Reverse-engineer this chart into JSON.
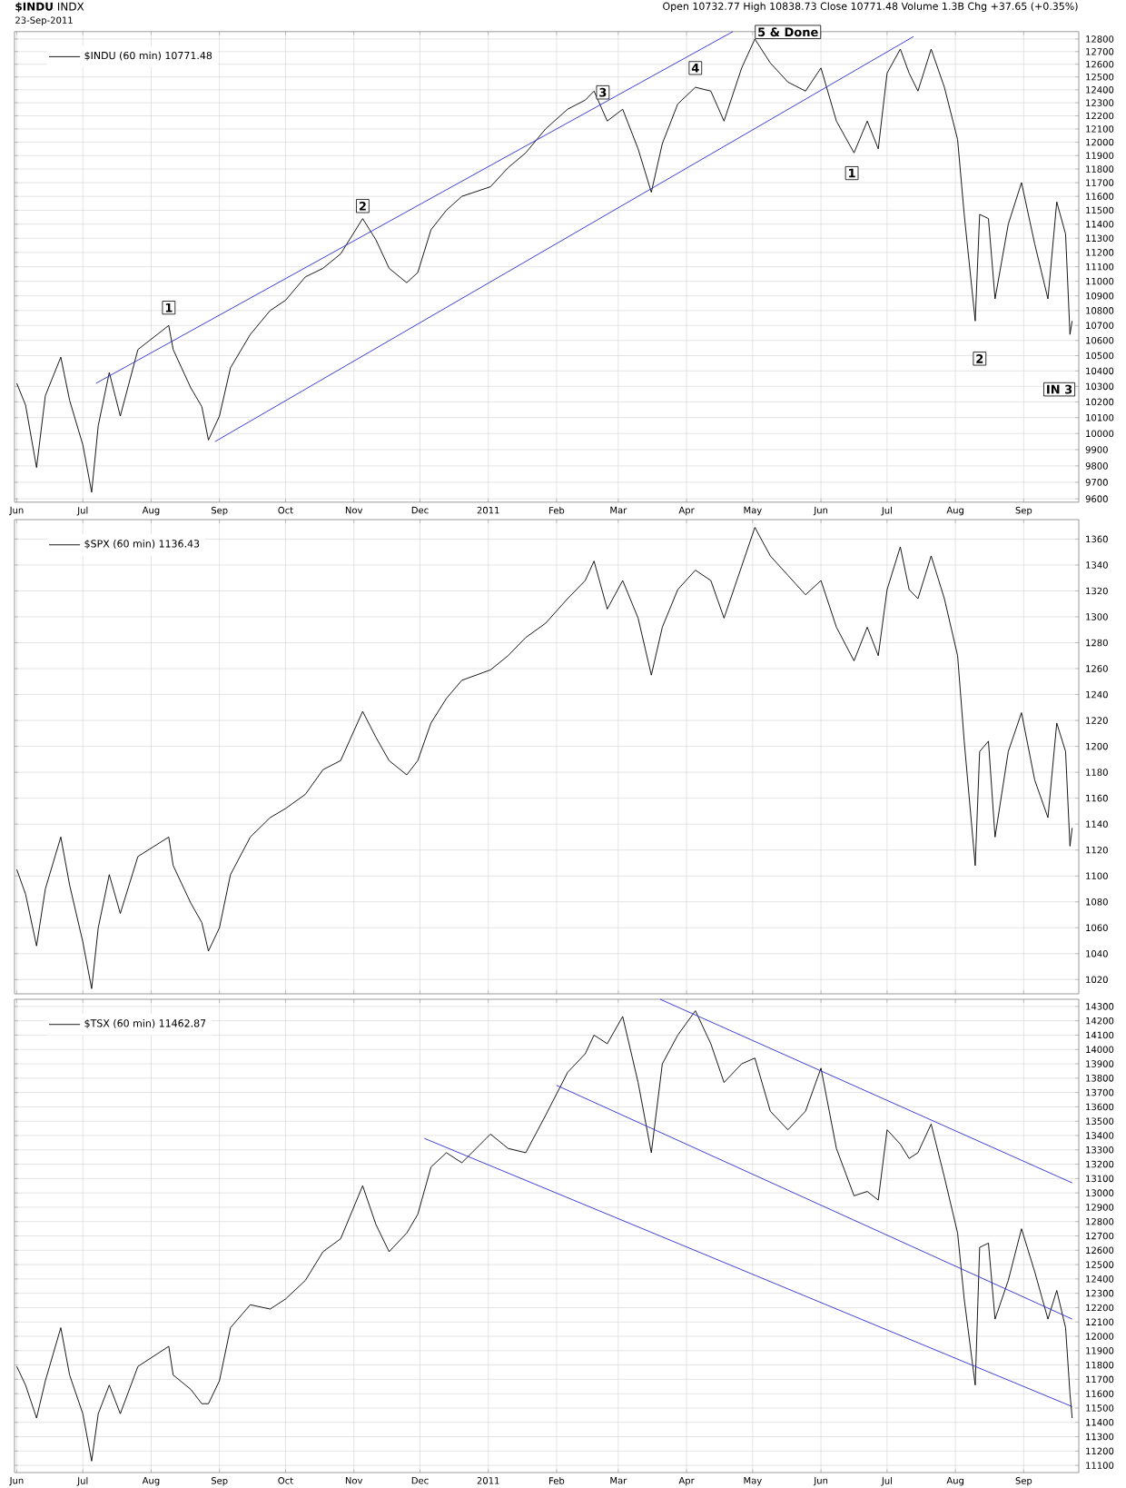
{
  "chart_data": [
    {
      "type": "line",
      "title": "**$INDU** INDX",
      "subtitle": "23-Sep-2011",
      "x": [
        "2010-06-01",
        "2010-06-05",
        "2010-06-10",
        "2010-06-14",
        "2010-06-21",
        "2010-06-25",
        "2010-07-01",
        "2010-07-05",
        "2010-07-08",
        "2010-07-13",
        "2010-07-18",
        "2010-07-26",
        "2010-08-09",
        "2010-08-11",
        "2010-08-19",
        "2010-08-24",
        "2010-08-27",
        "2010-09-01",
        "2010-09-06",
        "2010-09-15",
        "2010-09-24",
        "2010-10-01",
        "2010-10-10",
        "2010-10-18",
        "2010-10-26",
        "2010-11-05",
        "2010-11-11",
        "2010-11-17",
        "2010-11-25",
        "2010-11-30",
        "2010-12-06",
        "2010-12-13",
        "2010-12-20",
        "2011-01-02",
        "2011-01-10",
        "2011-01-18",
        "2011-01-27",
        "2011-02-06",
        "2011-02-14",
        "2011-02-18",
        "2011-02-24",
        "2011-03-03",
        "2011-03-10",
        "2011-03-16",
        "2011-03-21",
        "2011-03-28",
        "2011-04-05",
        "2011-04-12",
        "2011-04-18",
        "2011-04-26",
        "2011-05-02",
        "2011-05-09",
        "2011-05-17",
        "2011-05-25",
        "2011-06-01",
        "2011-06-08",
        "2011-06-16",
        "2011-06-22",
        "2011-06-27",
        "2011-07-01",
        "2011-07-07",
        "2011-07-11",
        "2011-07-15",
        "2011-07-21",
        "2011-07-27",
        "2011-08-02",
        "2011-08-05",
        "2011-08-10",
        "2011-08-12",
        "2011-08-16",
        "2011-08-19",
        "2011-08-25",
        "2011-08-31",
        "2011-09-06",
        "2011-09-12",
        "2011-09-16",
        "2011-09-20",
        "2011-09-22",
        "2011-09-23"
      ],
      "series": [
        {
          "name": "$INDU (60 min) 10771.48",
          "color": "#000000",
          "values": [
            10320,
            10180,
            9790,
            10240,
            10490,
            10210,
            9930,
            9640,
            10050,
            10390,
            10110,
            10540,
            10700,
            10540,
            10290,
            10170,
            9960,
            10110,
            10420,
            10640,
            10800,
            10870,
            11030,
            11090,
            11190,
            11440,
            11290,
            11090,
            10990,
            11060,
            11360,
            11500,
            11600,
            11670,
            11810,
            11920,
            12100,
            12250,
            12320,
            12390,
            12160,
            12250,
            11950,
            11630,
            11990,
            12290,
            12420,
            12390,
            12160,
            12570,
            12800,
            12610,
            12460,
            12390,
            12570,
            12160,
            11920,
            12160,
            11950,
            12530,
            12720,
            12530,
            12390,
            12720,
            12420,
            12020,
            11470,
            10730,
            11470,
            11440,
            10880,
            11400,
            11700,
            11260,
            10880,
            11560,
            11330,
            10640,
            10730
          ]
        },
        {
          "type": "line",
          "color": "#2b2bd4",
          "x": [
            "2010-07-07",
            "2011-04-22"
          ],
          "values": [
            10320,
            12860
          ]
        },
        {
          "type": "line",
          "color": "#2b2bd4",
          "x": [
            "2010-08-30",
            "2011-07-13"
          ],
          "values": [
            9950,
            12820
          ]
        }
      ],
      "annotations": [
        "Open 10732.77 High 10838.73 Close 10771.48 Volume 1.3B Chg +37.65 (+0.35%)",
        {
          "text": "1",
          "x": "2010-08-09",
          "y": 10820
        },
        {
          "text": "2",
          "x": "2010-11-05",
          "y": 11530
        },
        {
          "text": "3",
          "x": "2011-02-22",
          "y": 12380
        },
        {
          "text": "4",
          "x": "2011-04-05",
          "y": 12570
        },
        {
          "text": "5 & Done",
          "x": "2011-05-02",
          "y": 12800
        },
        {
          "text": "1",
          "x": "2011-06-15",
          "y": 11770
        },
        {
          "text": "2",
          "x": "2011-08-12",
          "y": 10480
        },
        "IN 3"
      ],
      "xlim": [
        "2010-05-31",
        "2011-09-26"
      ],
      "ylim": [
        9580,
        12860
      ],
      "log": true,
      "xticks": [
        {
          "value": "2010-06-01",
          "label": "Jun"
        },
        {
          "value": "2010-07-01",
          "label": "Jul"
        },
        {
          "value": "2010-08-01",
          "label": "Aug"
        },
        {
          "value": "2010-09-01",
          "label": "Sep"
        },
        {
          "value": "2010-10-01",
          "label": "Oct"
        },
        {
          "value": "2010-11-01",
          "label": "Nov"
        },
        {
          "value": "2010-12-01",
          "label": "Dec"
        },
        {
          "value": "2011-01-01",
          "label": "2011"
        },
        {
          "value": "2011-02-01",
          "label": "Feb"
        },
        {
          "value": "2011-03-01",
          "label": "Mar"
        },
        {
          "value": "2011-04-01",
          "label": "Apr"
        },
        {
          "value": "2011-05-01",
          "label": "May"
        },
        {
          "value": "2011-06-01",
          "label": "Jun"
        },
        {
          "value": "2011-07-01",
          "label": "Jul"
        },
        {
          "value": "2011-08-01",
          "label": "Aug"
        },
        {
          "value": "2011-09-01",
          "label": "Sep"
        }
      ],
      "yticks": [
        9600,
        9700,
        9800,
        9900,
        10000,
        10100,
        10200,
        10300,
        10400,
        10500,
        10600,
        10700,
        10800,
        10900,
        11000,
        11100,
        11200,
        11300,
        11400,
        11500,
        11600,
        11700,
        11800,
        11900,
        12000,
        12100,
        12200,
        12300,
        12400,
        12500,
        12600,
        12700,
        12800
      ],
      "grid": true,
      "legend": "top left"
    },
    {
      "type": "line",
      "x": [
        "2010-06-01",
        "2010-06-05",
        "2010-06-10",
        "2010-06-14",
        "2010-06-21",
        "2010-06-25",
        "2010-07-01",
        "2010-07-05",
        "2010-07-08",
        "2010-07-13",
        "2010-07-18",
        "2010-07-26",
        "2010-08-09",
        "2010-08-11",
        "2010-08-19",
        "2010-08-24",
        "2010-08-27",
        "2010-09-01",
        "2010-09-06",
        "2010-09-15",
        "2010-09-24",
        "2010-10-01",
        "2010-10-10",
        "2010-10-18",
        "2010-10-26",
        "2010-11-05",
        "2010-11-11",
        "2010-11-17",
        "2010-11-25",
        "2010-11-30",
        "2010-12-06",
        "2010-12-13",
        "2010-12-20",
        "2011-01-02",
        "2011-01-10",
        "2011-01-18",
        "2011-01-27",
        "2011-02-06",
        "2011-02-14",
        "2011-02-18",
        "2011-02-24",
        "2011-03-03",
        "2011-03-10",
        "2011-03-16",
        "2011-03-21",
        "2011-03-28",
        "2011-04-05",
        "2011-04-12",
        "2011-04-18",
        "2011-04-26",
        "2011-05-02",
        "2011-05-09",
        "2011-05-17",
        "2011-05-25",
        "2011-06-01",
        "2011-06-08",
        "2011-06-16",
        "2011-06-22",
        "2011-06-27",
        "2011-07-01",
        "2011-07-07",
        "2011-07-11",
        "2011-07-15",
        "2011-07-21",
        "2011-07-27",
        "2011-08-02",
        "2011-08-05",
        "2011-08-10",
        "2011-08-12",
        "2011-08-16",
        "2011-08-19",
        "2011-08-25",
        "2011-08-31",
        "2011-09-06",
        "2011-09-12",
        "2011-09-16",
        "2011-09-20",
        "2011-09-22",
        "2011-09-23"
      ],
      "series": [
        {
          "name": "$SPX (60 min) 1136.43",
          "color": "#000000",
          "values": [
            1105,
            1086,
            1046,
            1090,
            1130,
            1093,
            1049,
            1013,
            1060,
            1101,
            1071,
            1115,
            1130,
            1108,
            1079,
            1064,
            1042,
            1060,
            1101,
            1130,
            1145,
            1152,
            1163,
            1182,
            1189,
            1227,
            1207,
            1189,
            1178,
            1189,
            1218,
            1237,
            1251,
            1259,
            1270,
            1284,
            1295,
            1314,
            1328,
            1343,
            1306,
            1328,
            1299,
            1255,
            1292,
            1321,
            1336,
            1328,
            1299,
            1339,
            1369,
            1347,
            1332,
            1317,
            1328,
            1292,
            1266,
            1292,
            1270,
            1321,
            1354,
            1321,
            1314,
            1347,
            1314,
            1270,
            1204,
            1108,
            1196,
            1204,
            1130,
            1196,
            1226,
            1174,
            1145,
            1218,
            1196,
            1123,
            1137
          ]
        }
      ],
      "xlim": [
        "2010-05-31",
        "2011-09-26"
      ],
      "ylim": [
        1009,
        1375
      ],
      "xticks": [
        {
          "value": "2010-06-01",
          "label": null
        },
        {
          "value": "2010-07-01",
          "label": null
        },
        {
          "value": "2010-08-01",
          "label": null
        },
        {
          "value": "2010-09-01",
          "label": null
        },
        {
          "value": "2010-10-01",
          "label": null
        },
        {
          "value": "2010-11-01",
          "label": null
        },
        {
          "value": "2010-12-01",
          "label": null
        },
        {
          "value": "2011-01-01",
          "label": null
        },
        {
          "value": "2011-02-01",
          "label": null
        },
        {
          "value": "2011-03-01",
          "label": null
        },
        {
          "value": "2011-04-01",
          "label": null
        },
        {
          "value": "2011-05-01",
          "label": null
        },
        {
          "value": "2011-06-01",
          "label": null
        },
        {
          "value": "2011-07-01",
          "label": null
        },
        {
          "value": "2011-08-01",
          "label": null
        },
        {
          "value": "2011-09-01",
          "label": null
        }
      ],
      "yticks": [
        1020,
        1040,
        1060,
        1080,
        1100,
        1120,
        1140,
        1160,
        1180,
        1200,
        1220,
        1240,
        1260,
        1280,
        1300,
        1320,
        1340,
        1360
      ],
      "grid": true,
      "legend": "top left",
      "tick_labels": "y"
    },
    {
      "type": "line",
      "x": [
        "2010-06-01",
        "2010-06-05",
        "2010-06-10",
        "2010-06-14",
        "2010-06-21",
        "2010-06-25",
        "2010-07-01",
        "2010-07-05",
        "2010-07-08",
        "2010-07-13",
        "2010-07-18",
        "2010-07-26",
        "2010-08-09",
        "2010-08-11",
        "2010-08-19",
        "2010-08-24",
        "2010-08-27",
        "2010-09-01",
        "2010-09-06",
        "2010-09-15",
        "2010-09-24",
        "2010-10-01",
        "2010-10-10",
        "2010-10-18",
        "2010-10-26",
        "2010-11-05",
        "2010-11-11",
        "2010-11-17",
        "2010-11-25",
        "2010-11-30",
        "2010-12-06",
        "2010-12-13",
        "2010-12-20",
        "2011-01-02",
        "2011-01-10",
        "2011-01-18",
        "2011-01-27",
        "2011-02-06",
        "2011-02-14",
        "2011-02-18",
        "2011-02-24",
        "2011-03-03",
        "2011-03-10",
        "2011-03-16",
        "2011-03-21",
        "2011-03-28",
        "2011-04-05",
        "2011-04-12",
        "2011-04-18",
        "2011-04-26",
        "2011-05-02",
        "2011-05-09",
        "2011-05-17",
        "2011-05-25",
        "2011-06-01",
        "2011-06-08",
        "2011-06-16",
        "2011-06-22",
        "2011-06-27",
        "2011-07-01",
        "2011-07-07",
        "2011-07-11",
        "2011-07-15",
        "2011-07-21",
        "2011-07-27",
        "2011-08-02",
        "2011-08-05",
        "2011-08-10",
        "2011-08-12",
        "2011-08-16",
        "2011-08-19",
        "2011-08-25",
        "2011-08-31",
        "2011-09-06",
        "2011-09-12",
        "2011-09-16",
        "2011-09-20",
        "2011-09-22",
        "2011-09-23"
      ],
      "series": [
        {
          "name": "$TSX (60 min) 11462.87",
          "color": "#000000",
          "values": [
            11790,
            11660,
            11430,
            11690,
            12060,
            11730,
            11460,
            11130,
            11460,
            11660,
            11460,
            11790,
            11930,
            11730,
            11630,
            11530,
            11530,
            11690,
            12060,
            12220,
            12190,
            12260,
            12390,
            12590,
            12680,
            13050,
            12780,
            12590,
            12720,
            12850,
            13180,
            13280,
            13210,
            13410,
            13310,
            13280,
            13540,
            13840,
            13970,
            14100,
            14040,
            14230,
            13770,
            13280,
            13900,
            14100,
            14270,
            14040,
            13770,
            13900,
            13940,
            13570,
            13440,
            13570,
            13870,
            13310,
            12980,
            13010,
            12950,
            13440,
            13340,
            13240,
            13280,
            13480,
            13110,
            12720,
            12260,
            11660,
            12620,
            12650,
            12120,
            12390,
            12750,
            12450,
            12120,
            12320,
            12060,
            11600,
            11430
          ]
        },
        {
          "type": "line",
          "color": "#2b2bd4",
          "x": [
            "2011-03-20",
            "2011-09-23"
          ],
          "values": [
            14350,
            13070
          ]
        },
        {
          "type": "line",
          "color": "#2b2bd4",
          "x": [
            "2011-02-01",
            "2011-09-23"
          ],
          "values": [
            13750,
            12120
          ]
        },
        {
          "type": "line",
          "color": "#2b2bd4",
          "x": [
            "2010-12-03",
            "2011-09-23"
          ],
          "values": [
            13380,
            11510
          ]
        }
      ],
      "xlim": [
        "2010-05-31",
        "2011-09-26"
      ],
      "ylim": [
        11050,
        14350
      ],
      "xticks": [
        {
          "value": "2010-06-01",
          "label": "Jun"
        },
        {
          "value": "2010-07-01",
          "label": "Jul"
        },
        {
          "value": "2010-08-01",
          "label": "Aug"
        },
        {
          "value": "2010-09-01",
          "label": "Sep"
        },
        {
          "value": "2010-10-01",
          "label": "Oct"
        },
        {
          "value": "2010-11-01",
          "label": "Nov"
        },
        {
          "value": "2010-12-01",
          "label": "Dec"
        },
        {
          "value": "2011-01-01",
          "label": "2011"
        },
        {
          "value": "2011-02-01",
          "label": "Feb"
        },
        {
          "value": "2011-03-01",
          "label": "Mar"
        },
        {
          "value": "2011-04-01",
          "label": "Apr"
        },
        {
          "value": "2011-05-01",
          "label": "May"
        },
        {
          "value": "2011-06-01",
          "label": "Jun"
        },
        {
          "value": "2011-07-01",
          "label": "Jul"
        },
        {
          "value": "2011-08-01",
          "label": "Aug"
        },
        {
          "value": "2011-09-01",
          "label": "Sep"
        }
      ],
      "yticks": [
        11100,
        11200,
        11300,
        11400,
        11500,
        11600,
        11700,
        11800,
        11900,
        12000,
        12100,
        12200,
        12300,
        12400,
        12500,
        12600,
        12700,
        12800,
        12900,
        13000,
        13100,
        13200,
        13300,
        13400,
        13500,
        13600,
        13700,
        13800,
        13900,
        14000,
        14100,
        14200,
        14300
      ],
      "grid": true,
      "legend": "top left"
    }
  ]
}
